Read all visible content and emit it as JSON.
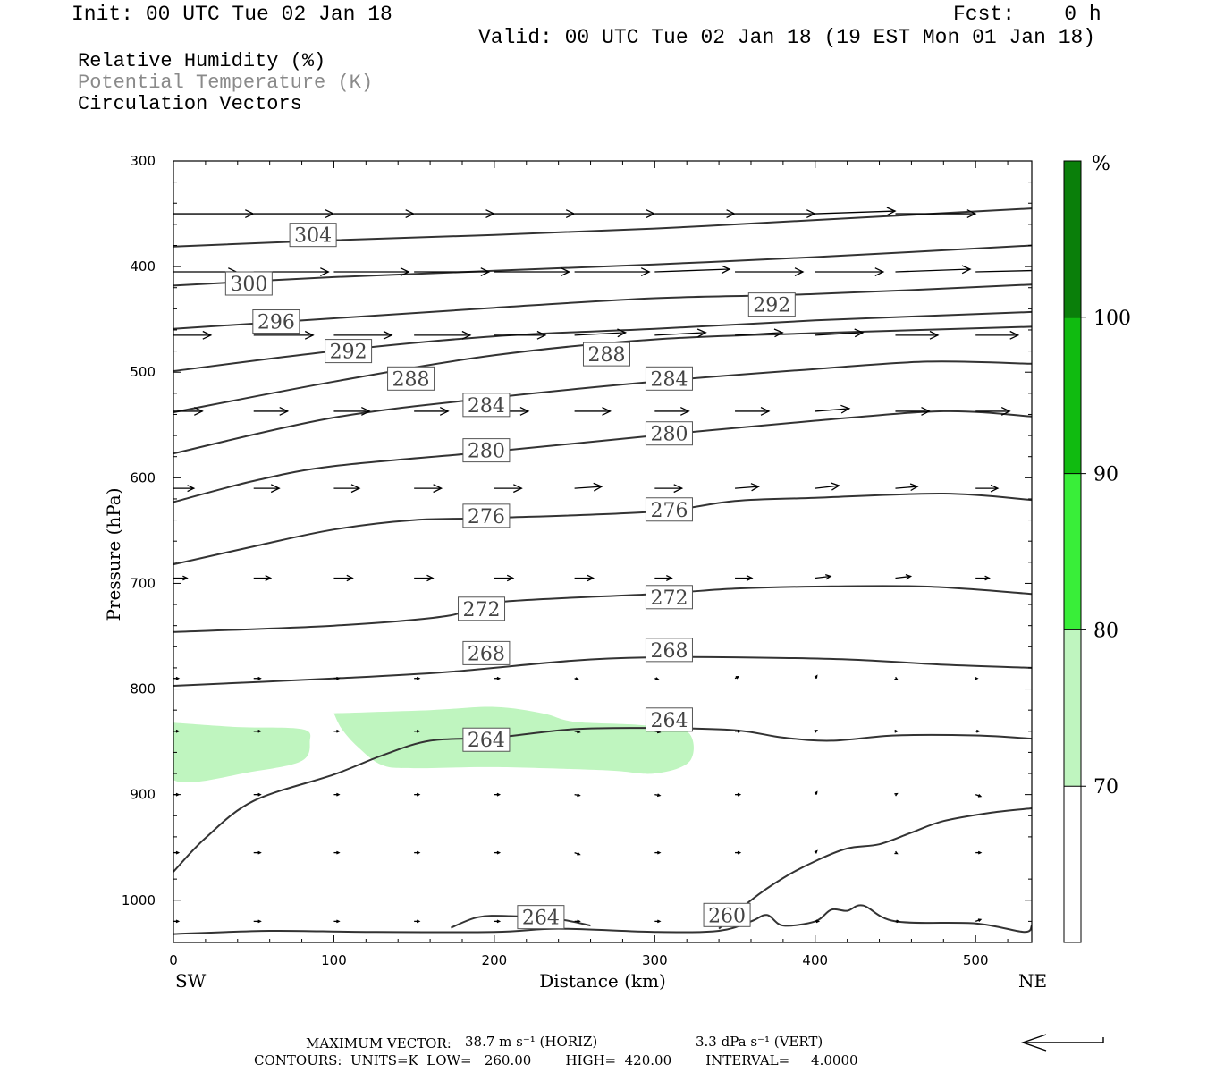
{
  "header": {
    "init": "Init: 00 UTC Tue 02 Jan 18",
    "fcst": "Fcst:    0 h",
    "valid": "Valid: 00 UTC Tue 02 Jan 18 (19 EST Mon 01 Jan 18)"
  },
  "legend": {
    "line1": "Relative Humidity (%)",
    "line2": "Potential Temperature (K)",
    "line3": "Circulation Vectors"
  },
  "footer": {
    "max_vector_label": "MAXIMUM VECTOR:",
    "max_vector_horiz": "38.7 m s⁻¹ (HORIZ)",
    "max_vector_vert": "3.3 dPa s⁻¹ (VERT)",
    "contours": "CONTOURS:  UNITS=K  LOW=   260.00        HIGH=  420.00        INTERVAL=     4.0000"
  },
  "colors": {
    "rh70": "#bff5bf",
    "rh80": "#39ee39",
    "rh90": "#10bb10",
    "rh100": "#0a7f0a",
    "contour": "#333333"
  },
  "chart_data": {
    "type": "cross-section",
    "xlabel": "Distance (km)",
    "ylabel": "Pressure (hPa)",
    "xlim": [
      0,
      535
    ],
    "ylim": [
      1040,
      300
    ],
    "x_ticks": [
      0,
      100,
      200,
      300,
      400,
      500
    ],
    "y_ticks": [
      300,
      400,
      500,
      600,
      700,
      800,
      900,
      1000
    ],
    "x_end_labels": {
      "left": "SW",
      "right": "NE"
    },
    "colorbar": {
      "unit": "%",
      "levels": [
        70,
        80,
        90,
        100
      ],
      "colors": [
        "#ffffff",
        "#bff5bf",
        "#39ee39",
        "#10bb10",
        "#0a7f0a"
      ]
    },
    "theta_contours": [
      {
        "value": 304,
        "label": "304",
        "label_at": [
          87,
          370
        ],
        "points": [
          [
            0,
            381
          ],
          [
            100,
            375
          ],
          [
            200,
            370
          ],
          [
            300,
            364
          ],
          [
            400,
            356
          ],
          [
            535,
            345
          ]
        ]
      },
      {
        "value": 300,
        "label": "300",
        "label_at": [
          47,
          416
        ],
        "points": [
          [
            0,
            418
          ],
          [
            100,
            410
          ],
          [
            200,
            404
          ],
          [
            300,
            398
          ],
          [
            400,
            391
          ],
          [
            535,
            380
          ]
        ]
      },
      {
        "value": 296,
        "label": "296",
        "label_at": [
          64,
          452
        ],
        "points": [
          [
            0,
            459
          ],
          [
            100,
            449
          ],
          [
            200,
            439
          ],
          [
            300,
            430
          ],
          [
            400,
            426
          ],
          [
            535,
            417
          ]
        ]
      },
      {
        "value": 292,
        "label": "292",
        "label_at": [
          109,
          480
        ],
        "points": [
          [
            0,
            499
          ],
          [
            100,
            480
          ],
          [
            200,
            466
          ],
          [
            300,
            459
          ],
          [
            400,
            451
          ],
          [
            535,
            443
          ]
        ]
      },
      {
        "value": 292,
        "label": "292",
        "label_at": [
          373,
          436
        ],
        "points": []
      },
      {
        "value": 288,
        "label": "288",
        "label_at": [
          148,
          506
        ],
        "points": [
          [
            0,
            538
          ],
          [
            100,
            509
          ],
          [
            200,
            484
          ],
          [
            300,
            469
          ],
          [
            400,
            463
          ],
          [
            535,
            457
          ]
        ]
      },
      {
        "value": 288,
        "label": "288",
        "label_at": [
          270,
          483
        ],
        "points": []
      },
      {
        "value": 284,
        "label": "284",
        "label_at": [
          195,
          531
        ],
        "points": [
          [
            0,
            577
          ],
          [
            100,
            543
          ],
          [
            200,
            524
          ],
          [
            300,
            509
          ],
          [
            400,
            497
          ],
          [
            470,
            490
          ],
          [
            535,
            492
          ]
        ]
      },
      {
        "value": 284,
        "label": "284",
        "label_at": [
          309,
          506
        ],
        "points": []
      },
      {
        "value": 280,
        "label": "280",
        "label_at": [
          195,
          574
        ],
        "points": [
          [
            0,
            623
          ],
          [
            50,
            603
          ],
          [
            100,
            589
          ],
          [
            200,
            575
          ],
          [
            300,
            560
          ],
          [
            400,
            546
          ],
          [
            480,
            537
          ],
          [
            535,
            542
          ]
        ]
      },
      {
        "value": 280,
        "label": "280",
        "label_at": [
          309,
          558
        ],
        "points": []
      },
      {
        "value": 276,
        "label": "276",
        "label_at": [
          195,
          636
        ],
        "points": [
          [
            0,
            682
          ],
          [
            50,
            665
          ],
          [
            100,
            649
          ],
          [
            150,
            640
          ],
          [
            200,
            638
          ],
          [
            300,
            632
          ],
          [
            350,
            622
          ],
          [
            400,
            619
          ],
          [
            480,
            615
          ],
          [
            535,
            621
          ]
        ]
      },
      {
        "value": 276,
        "label": "276",
        "label_at": [
          309,
          630
        ],
        "points": []
      },
      {
        "value": 272,
        "label": "272",
        "label_at": [
          192,
          724
        ],
        "points": [
          [
            0,
            746
          ],
          [
            100,
            740
          ],
          [
            170,
            731
          ],
          [
            200,
            718
          ],
          [
            300,
            710
          ],
          [
            350,
            705
          ],
          [
            400,
            703
          ],
          [
            470,
            703
          ],
          [
            535,
            710
          ]
        ]
      },
      {
        "value": 272,
        "label": "272",
        "label_at": [
          309,
          713
        ],
        "points": []
      },
      {
        "value": 268,
        "label": "268",
        "label_at": [
          195,
          766
        ],
        "points": [
          [
            0,
            797
          ],
          [
            100,
            790
          ],
          [
            170,
            784
          ],
          [
            250,
            773
          ],
          [
            300,
            770
          ],
          [
            350,
            770
          ],
          [
            420,
            772
          ],
          [
            480,
            777
          ],
          [
            535,
            780
          ]
        ]
      },
      {
        "value": 268,
        "label": "268",
        "label_at": [
          309,
          763
        ],
        "points": []
      },
      {
        "value": 264,
        "label": "264",
        "label_at": [
          195,
          848
        ],
        "points": [
          [
            0,
            973
          ],
          [
            20,
            941
          ],
          [
            50,
            906
          ],
          [
            100,
            881
          ],
          [
            130,
            863
          ],
          [
            160,
            849
          ],
          [
            200,
            846
          ],
          [
            250,
            838
          ],
          [
            300,
            837
          ],
          [
            350,
            839
          ],
          [
            380,
            846
          ],
          [
            410,
            849
          ],
          [
            450,
            844
          ],
          [
            500,
            844
          ],
          [
            535,
            847
          ]
        ]
      },
      {
        "value": 264,
        "label": "264",
        "label_at": [
          309,
          829
        ],
        "points": []
      },
      {
        "value": 264,
        "label": "264",
        "label_at": [
          229,
          1016
        ],
        "points": [
          [
            173,
            1026
          ],
          [
            190,
            1016
          ],
          [
            210,
            1015
          ],
          [
            240,
            1018
          ],
          [
            260,
            1024
          ]
        ]
      },
      {
        "value": 260,
        "label": "260",
        "label_at": [
          345,
          1014
        ],
        "points": [
          [
            340,
            1027
          ],
          [
            360,
            1000
          ],
          [
            380,
            979
          ],
          [
            400,
            963
          ],
          [
            420,
            951
          ],
          [
            440,
            947
          ],
          [
            460,
            936
          ],
          [
            480,
            925
          ],
          [
            510,
            917
          ],
          [
            535,
            913
          ]
        ]
      },
      {
        "value": 260,
        "label": "",
        "label_at": null,
        "points": [
          [
            0,
            1032
          ],
          [
            60,
            1029
          ],
          [
            120,
            1030
          ],
          [
            200,
            1030
          ],
          [
            240,
            1027
          ],
          [
            300,
            1030
          ],
          [
            340,
            1029
          ],
          [
            360,
            1020
          ],
          [
            370,
            1014
          ],
          [
            380,
            1024
          ],
          [
            400,
            1020
          ],
          [
            410,
            1009
          ],
          [
            420,
            1010
          ],
          [
            430,
            1005
          ],
          [
            450,
            1020
          ],
          [
            500,
            1022
          ],
          [
            530,
            1030
          ],
          [
            535,
            1024
          ]
        ]
      }
    ],
    "rh_shading": [
      {
        "level": "70-80",
        "polygon": [
          [
            0,
            832
          ],
          [
            40,
            836
          ],
          [
            80,
            838
          ],
          [
            85,
            850
          ],
          [
            80,
            868
          ],
          [
            50,
            878
          ],
          [
            0,
            886
          ]
        ]
      },
      {
        "level": "70-80",
        "polygon": [
          [
            100,
            823
          ],
          [
            160,
            820
          ],
          [
            200,
            817
          ],
          [
            230,
            823
          ],
          [
            250,
            831
          ],
          [
            290,
            834
          ],
          [
            320,
            840
          ],
          [
            322,
            868
          ],
          [
            300,
            880
          ],
          [
            270,
            877
          ],
          [
            200,
            874
          ],
          [
            150,
            875
          ],
          [
            130,
            872
          ],
          [
            115,
            855
          ],
          [
            105,
            838
          ]
        ]
      }
    ],
    "vectors": [
      {
        "p": 350,
        "u": [
          47,
          47,
          47,
          47,
          47,
          47,
          47,
          47,
          47,
          47
        ],
        "w": [
          0,
          0,
          0,
          0,
          0,
          0,
          0,
          0,
          -3,
          0
        ]
      },
      {
        "p": 405,
        "u": [
          37,
          44,
          44,
          44,
          44,
          44,
          44,
          40,
          40,
          44,
          46
        ],
        "w": [
          0,
          0,
          0,
          0,
          0,
          0,
          -3,
          0,
          0,
          -3,
          -2
        ]
      },
      {
        "p": 465,
        "u": [
          22,
          35,
          34,
          33,
          30,
          30,
          30,
          28,
          28,
          25,
          25
        ],
        "w": [
          0,
          0,
          0,
          0,
          0,
          -3,
          -3,
          -3,
          -3,
          0,
          0
        ]
      },
      {
        "p": 537,
        "u": [
          17,
          20,
          21,
          20,
          20,
          21,
          20,
          20,
          20,
          20,
          20
        ],
        "w": [
          0,
          0,
          0,
          0,
          0,
          0,
          0,
          0,
          -3,
          0,
          0
        ]
      },
      {
        "p": 610,
        "u": [
          12,
          15,
          15,
          16,
          16,
          16,
          16,
          14,
          14,
          13,
          13
        ],
        "w": [
          0,
          0,
          0,
          0,
          0,
          -2,
          0,
          -2,
          -3,
          -2,
          0
        ]
      },
      {
        "p": 695,
        "u": [
          8,
          10,
          11,
          11,
          11,
          11,
          10,
          10,
          9,
          9,
          8
        ],
        "w": [
          0,
          0,
          0,
          0,
          0,
          0,
          0,
          0,
          -2,
          -2,
          0
        ]
      },
      {
        "p": 790,
        "u": [
          3,
          4,
          3,
          3,
          3,
          2,
          2,
          2,
          1,
          1,
          1
        ],
        "w": [
          0,
          0,
          0,
          0,
          0,
          1,
          1,
          -2,
          -3,
          1,
          0
        ]
      },
      {
        "p": 840,
        "u": [
          3,
          4,
          3,
          3,
          3,
          3,
          3,
          3,
          1,
          1,
          2
        ],
        "w": [
          0,
          0,
          0,
          0,
          0,
          1,
          1,
          0,
          -1,
          0,
          0
        ]
      },
      {
        "p": 900,
        "u": [
          3,
          4,
          3,
          3,
          3,
          3,
          3,
          3,
          1,
          1,
          3
        ],
        "w": [
          0,
          0,
          0,
          0,
          0,
          1,
          1,
          0,
          -3,
          -1,
          2
        ]
      },
      {
        "p": 955,
        "u": [
          3,
          4,
          3,
          3,
          3,
          3,
          3,
          3,
          1,
          1,
          3
        ],
        "w": [
          0,
          0,
          0,
          0,
          0,
          2,
          0,
          0,
          -2,
          1,
          0
        ]
      },
      {
        "p": 1020,
        "u": [
          3,
          4,
          3,
          3,
          3,
          3,
          3,
          2,
          2,
          2,
          3
        ],
        "w": [
          0,
          0,
          0,
          0,
          0,
          0,
          0,
          0,
          0,
          0,
          -2
        ]
      }
    ]
  }
}
